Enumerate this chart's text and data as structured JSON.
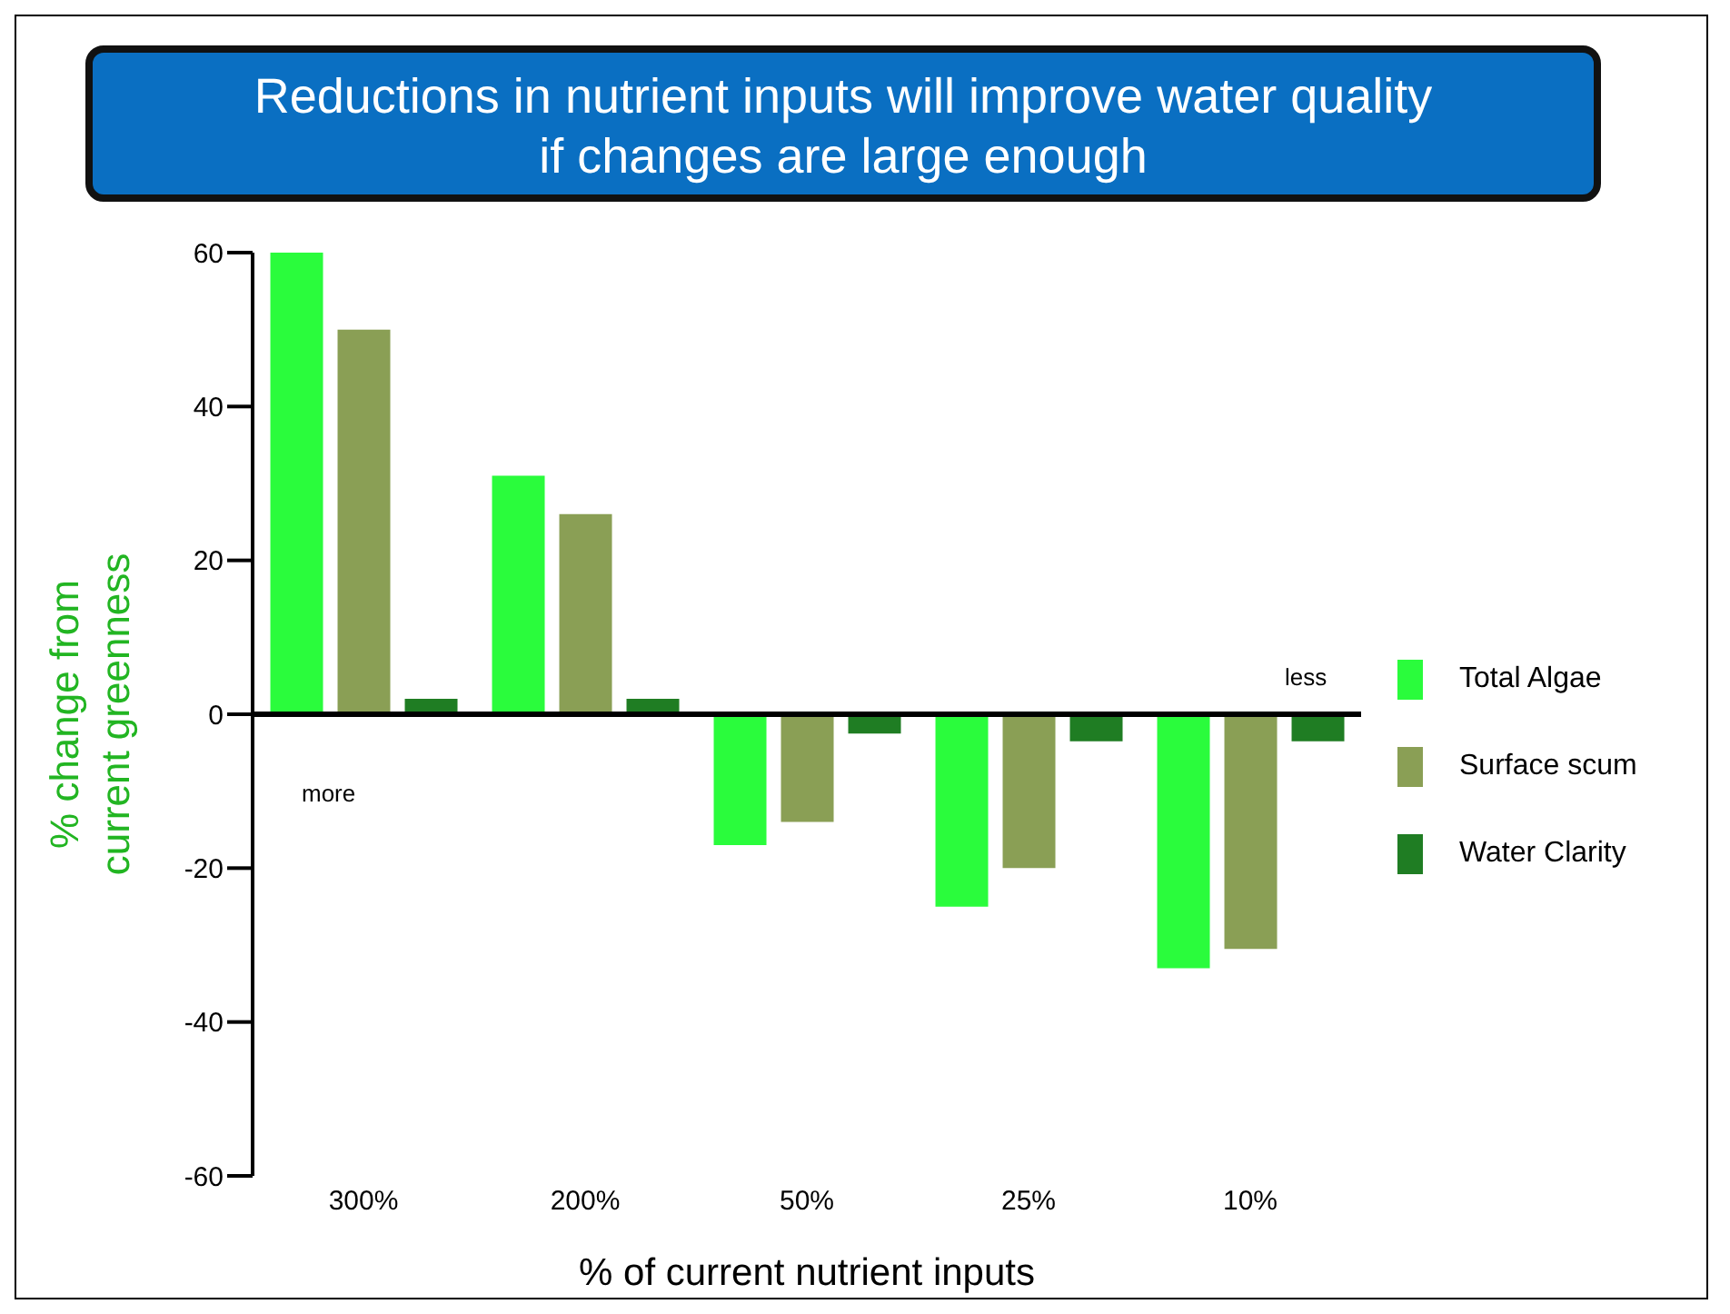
{
  "chart_data": {
    "type": "bar",
    "title": "Reductions in nutrient inputs will improve water quality\nif changes are large enough",
    "xlabel": "% of current nutrient inputs",
    "ylabel": "% change from current greenness",
    "categories": [
      "300%",
      "200%",
      "50%",
      "25%",
      "10%"
    ],
    "series": [
      {
        "name": "Total Algae",
        "color": "#2afc3c",
        "values": [
          60,
          31,
          -17,
          -25,
          -33
        ]
      },
      {
        "name": "Surface scum",
        "color": "#8a9f55",
        "values": [
          50,
          26,
          -14,
          -20,
          -30.5
        ]
      },
      {
        "name": "Water Clarity",
        "color": "#1f7d23",
        "values": [
          2,
          2,
          -2.5,
          -3.5,
          -3.5
        ]
      }
    ],
    "ylim": [
      -60,
      60
    ],
    "yticks": [
      -60,
      -40,
      -20,
      0,
      20,
      40,
      60
    ],
    "legend": "right",
    "annotations": [
      "more",
      "less"
    ]
  }
}
